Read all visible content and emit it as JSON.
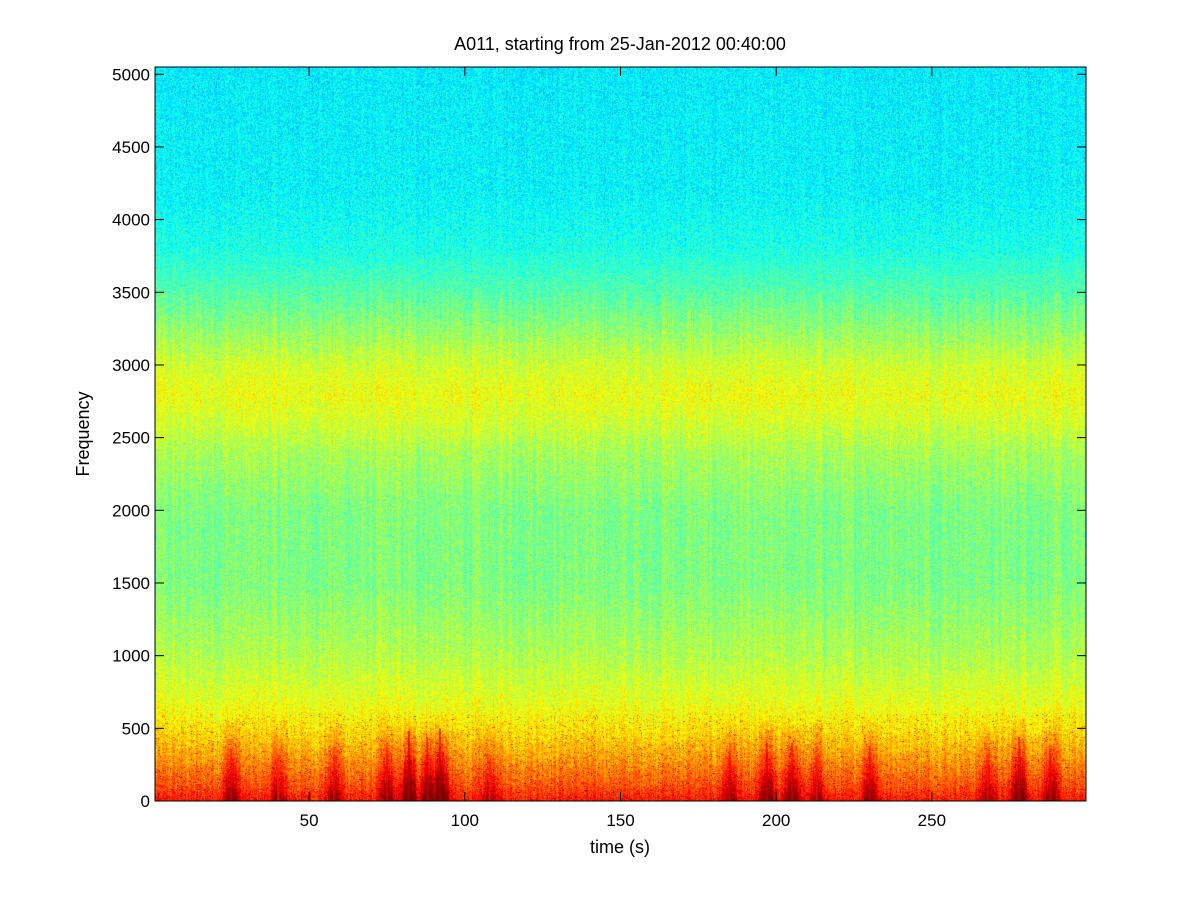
{
  "chart_data": {
    "type": "heatmap",
    "title": "A011, starting from 25-Jan-2012 00:40:00",
    "xlabel": "time (s)",
    "ylabel": "Frequency",
    "xlim": [
      0.5,
      299.5
    ],
    "ylim": [
      0,
      5050
    ],
    "xticks": [
      50,
      100,
      150,
      200,
      250
    ],
    "yticks": [
      0,
      500,
      1000,
      1500,
      2000,
      2500,
      3000,
      3500,
      4000,
      4500,
      5000
    ],
    "grid": false,
    "legend": "none",
    "colormap": "jet",
    "colormap_range_note": "low to high energy",
    "spectral_profile": [
      {
        "frequency": 0,
        "level": 0.86
      },
      {
        "frequency": 100,
        "level": 0.8
      },
      {
        "frequency": 300,
        "level": 0.72
      },
      {
        "frequency": 500,
        "level": 0.65
      },
      {
        "frequency": 700,
        "level": 0.6
      },
      {
        "frequency": 1000,
        "level": 0.55
      },
      {
        "frequency": 1500,
        "level": 0.5
      },
      {
        "frequency": 2000,
        "level": 0.5
      },
      {
        "frequency": 2400,
        "level": 0.54
      },
      {
        "frequency": 2600,
        "level": 0.58
      },
      {
        "frequency": 2800,
        "level": 0.61
      },
      {
        "frequency": 3000,
        "level": 0.58
      },
      {
        "frequency": 3200,
        "level": 0.53
      },
      {
        "frequency": 3500,
        "level": 0.46
      },
      {
        "frequency": 3800,
        "level": 0.4
      },
      {
        "frequency": 4200,
        "level": 0.37
      },
      {
        "frequency": 5050,
        "level": 0.36
      }
    ],
    "low_frequency_bursts": [
      {
        "time": 25,
        "level": 0.88
      },
      {
        "time": 40,
        "level": 0.85
      },
      {
        "time": 58,
        "level": 0.86
      },
      {
        "time": 75,
        "level": 0.88
      },
      {
        "time": 82,
        "level": 0.94
      },
      {
        "time": 88,
        "level": 0.92
      },
      {
        "time": 92,
        "level": 0.95
      },
      {
        "time": 108,
        "level": 0.84
      },
      {
        "time": 185,
        "level": 0.87
      },
      {
        "time": 197,
        "level": 0.9
      },
      {
        "time": 205,
        "level": 0.9
      },
      {
        "time": 213,
        "level": 0.85
      },
      {
        "time": 230,
        "level": 0.89
      },
      {
        "time": 268,
        "level": 0.86
      },
      {
        "time": 278,
        "level": 0.92
      },
      {
        "time": 288,
        "level": 0.88
      }
    ],
    "colors": {
      "dark_blue": "#00008f",
      "blue": "#0000ff",
      "cyan": "#00ffff",
      "yellow": "#ffff00",
      "red": "#ff0000",
      "dark_red": "#800000",
      "axes_frame": "#000000",
      "background": "#ffffff"
    }
  }
}
